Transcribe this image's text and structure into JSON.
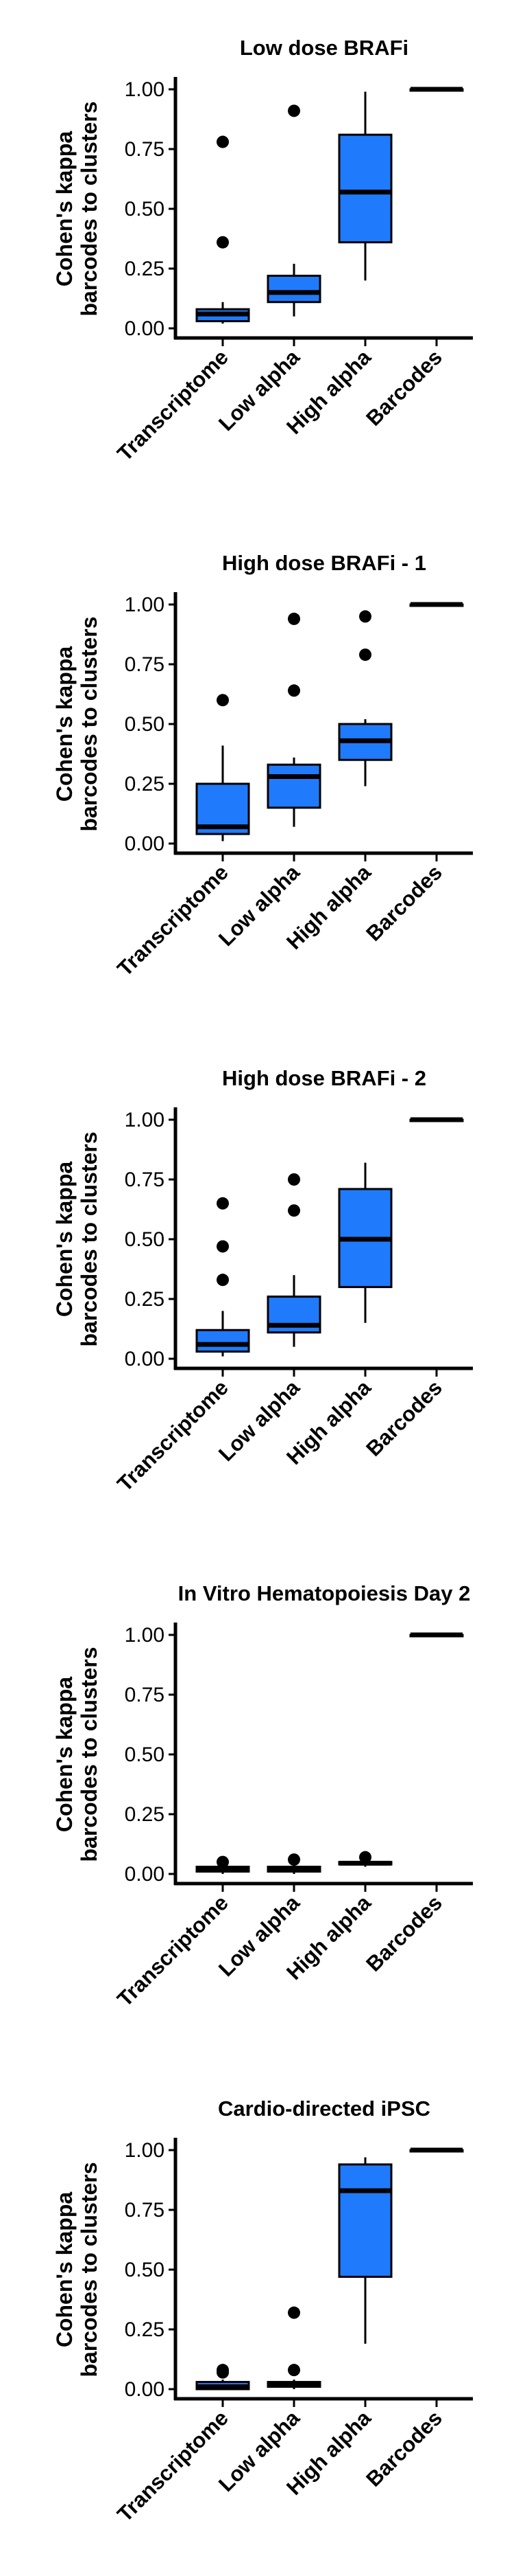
{
  "colors": {
    "box_fill": "#1f7bfb",
    "stroke": "#000000",
    "background": "#ffffff"
  },
  "chart_data": [
    {
      "type": "box",
      "title": "Low dose BRAFi",
      "ylabel": [
        "Cohen's kappa",
        "barcodes to clusters"
      ],
      "xlabel": "",
      "ylim": [
        0,
        1
      ],
      "yticks": [
        "0.00",
        "0.25",
        "0.50",
        "0.75",
        "1.00"
      ],
      "categories": [
        "Transcriptome",
        "Low alpha",
        "High alpha",
        "Barcodes"
      ],
      "boxes": [
        {
          "whisker_low": 0.02,
          "q1": 0.03,
          "median": 0.06,
          "q3": 0.08,
          "whisker_high": 0.11,
          "outliers": [
            0.36,
            0.78
          ]
        },
        {
          "whisker_low": 0.05,
          "q1": 0.11,
          "median": 0.15,
          "q3": 0.22,
          "whisker_high": 0.27,
          "outliers": [
            0.91
          ]
        },
        {
          "whisker_low": 0.2,
          "q1": 0.36,
          "median": 0.57,
          "q3": 0.81,
          "whisker_high": 0.99,
          "outliers": []
        },
        {
          "whisker_low": 1.0,
          "q1": 1.0,
          "median": 1.0,
          "q3": 1.0,
          "whisker_high": 1.0,
          "outliers": []
        }
      ]
    },
    {
      "type": "box",
      "title": "High dose BRAFi - 1",
      "ylabel": [
        "Cohen's kappa",
        "barcodes to clusters"
      ],
      "xlabel": "",
      "ylim": [
        0,
        1
      ],
      "yticks": [
        "0.00",
        "0.25",
        "0.50",
        "0.75",
        "1.00"
      ],
      "categories": [
        "Transcriptome",
        "Low alpha",
        "High alpha",
        "Barcodes"
      ],
      "boxes": [
        {
          "whisker_low": 0.01,
          "q1": 0.04,
          "median": 0.07,
          "q3": 0.25,
          "whisker_high": 0.41,
          "outliers": [
            0.6
          ]
        },
        {
          "whisker_low": 0.07,
          "q1": 0.15,
          "median": 0.28,
          "q3": 0.33,
          "whisker_high": 0.36,
          "outliers": [
            0.64,
            0.94
          ]
        },
        {
          "whisker_low": 0.24,
          "q1": 0.35,
          "median": 0.43,
          "q3": 0.5,
          "whisker_high": 0.52,
          "outliers": [
            0.79,
            0.95
          ]
        },
        {
          "whisker_low": 1.0,
          "q1": 1.0,
          "median": 1.0,
          "q3": 1.0,
          "whisker_high": 1.0,
          "outliers": []
        }
      ]
    },
    {
      "type": "box",
      "title": "High dose BRAFi - 2",
      "ylabel": [
        "Cohen's kappa",
        "barcodes to clusters"
      ],
      "xlabel": "",
      "ylim": [
        0,
        1
      ],
      "yticks": [
        "0.00",
        "0.25",
        "0.50",
        "0.75",
        "1.00"
      ],
      "categories": [
        "Transcriptome",
        "Low alpha",
        "High alpha",
        "Barcodes"
      ],
      "boxes": [
        {
          "whisker_low": 0.01,
          "q1": 0.03,
          "median": 0.06,
          "q3": 0.12,
          "whisker_high": 0.2,
          "outliers": [
            0.33,
            0.47,
            0.65
          ]
        },
        {
          "whisker_low": 0.05,
          "q1": 0.11,
          "median": 0.14,
          "q3": 0.26,
          "whisker_high": 0.35,
          "outliers": [
            0.62,
            0.75
          ]
        },
        {
          "whisker_low": 0.15,
          "q1": 0.3,
          "median": 0.5,
          "q3": 0.71,
          "whisker_high": 0.82,
          "outliers": []
        },
        {
          "whisker_low": 1.0,
          "q1": 1.0,
          "median": 1.0,
          "q3": 1.0,
          "whisker_high": 1.0,
          "outliers": []
        }
      ]
    },
    {
      "type": "box",
      "title": "In Vitro Hematopoiesis Day 2",
      "ylabel": [
        "Cohen's kappa",
        "barcodes to clusters"
      ],
      "xlabel": "",
      "ylim": [
        0,
        1
      ],
      "yticks": [
        "0.00",
        "0.25",
        "0.50",
        "0.75",
        "1.00"
      ],
      "categories": [
        "Transcriptome",
        "Low alpha",
        "High alpha",
        "Barcodes"
      ],
      "boxes": [
        {
          "whisker_low": 0.0,
          "q1": 0.01,
          "median": 0.02,
          "q3": 0.03,
          "whisker_high": 0.03,
          "outliers": [
            0.05
          ]
        },
        {
          "whisker_low": 0.0,
          "q1": 0.01,
          "median": 0.02,
          "q3": 0.03,
          "whisker_high": 0.04,
          "outliers": [
            0.06
          ]
        },
        {
          "whisker_low": 0.03,
          "q1": 0.04,
          "median": 0.045,
          "q3": 0.05,
          "whisker_high": 0.05,
          "outliers": [
            0.07
          ]
        },
        {
          "whisker_low": 1.0,
          "q1": 1.0,
          "median": 1.0,
          "q3": 1.0,
          "whisker_high": 1.0,
          "outliers": []
        }
      ]
    },
    {
      "type": "box",
      "title": "Cardio-directed iPSC",
      "ylabel": [
        "Cohen's kappa",
        "barcodes to clusters"
      ],
      "xlabel": "",
      "ylim": [
        0,
        1
      ],
      "yticks": [
        "0.00",
        "0.25",
        "0.50",
        "0.75",
        "1.00"
      ],
      "categories": [
        "Transcriptome",
        "Low alpha",
        "High alpha",
        "Barcodes"
      ],
      "boxes": [
        {
          "whisker_low": 0.0,
          "q1": 0.0,
          "median": 0.01,
          "q3": 0.03,
          "whisker_high": 0.04,
          "outliers": [
            0.07,
            0.08
          ]
        },
        {
          "whisker_low": 0.0,
          "q1": 0.01,
          "median": 0.02,
          "q3": 0.03,
          "whisker_high": 0.04,
          "outliers": [
            0.08,
            0.32
          ]
        },
        {
          "whisker_low": 0.19,
          "q1": 0.47,
          "median": 0.83,
          "q3": 0.94,
          "whisker_high": 0.97,
          "outliers": []
        },
        {
          "whisker_low": 1.0,
          "q1": 1.0,
          "median": 1.0,
          "q3": 1.0,
          "whisker_high": 1.0,
          "outliers": []
        }
      ]
    }
  ]
}
